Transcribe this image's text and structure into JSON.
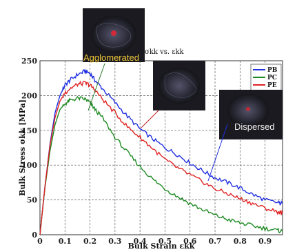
{
  "chart_data": {
    "type": "line",
    "title": "σkk vs. εkk",
    "xlabel": "Bulk Strain εkk",
    "ylabel": "Bulk Stress σkk [MPa]",
    "xlim": [
      0,
      0.97
    ],
    "ylim": [
      0,
      250
    ],
    "x_ticks": [
      "0",
      "0.1",
      "0.2",
      "0.3",
      "0.4",
      "0.5",
      "0.6",
      "0.7",
      "0.8",
      "0.9"
    ],
    "y_ticks": [
      "0",
      "50",
      "100",
      "150",
      "200",
      "250"
    ],
    "grid": true,
    "legend_position": "top-right",
    "series": [
      {
        "name": "PB",
        "color": "#1f2fe0",
        "x": [
          0,
          0.02,
          0.04,
          0.06,
          0.08,
          0.1,
          0.12,
          0.15,
          0.18,
          0.2,
          0.22,
          0.25,
          0.3,
          0.35,
          0.4,
          0.45,
          0.5,
          0.55,
          0.6,
          0.65,
          0.7,
          0.75,
          0.8,
          0.85,
          0.9,
          0.95,
          0.97
        ],
        "y": [
          0,
          70,
          130,
          175,
          200,
          215,
          222,
          230,
          235,
          232,
          222,
          210,
          190,
          170,
          152,
          138,
          125,
          115,
          103,
          92,
          82,
          75,
          67,
          58,
          50,
          46,
          45
        ]
      },
      {
        "name": "PC",
        "color": "#1e8a22",
        "x": [
          0,
          0.02,
          0.04,
          0.06,
          0.08,
          0.1,
          0.12,
          0.15,
          0.18,
          0.2,
          0.22,
          0.25,
          0.3,
          0.35,
          0.4,
          0.45,
          0.5,
          0.55,
          0.6,
          0.65,
          0.7,
          0.75,
          0.8,
          0.85,
          0.9,
          0.95,
          0.97
        ],
        "y": [
          0,
          68,
          120,
          158,
          180,
          188,
          193,
          196,
          195,
          190,
          180,
          168,
          140,
          118,
          98,
          80,
          66,
          55,
          45,
          36,
          28,
          22,
          17,
          13,
          9,
          6,
          5
        ]
      },
      {
        "name": "PE",
        "color": "#e02222",
        "x": [
          0,
          0.02,
          0.04,
          0.06,
          0.08,
          0.1,
          0.12,
          0.15,
          0.18,
          0.2,
          0.22,
          0.25,
          0.3,
          0.35,
          0.4,
          0.45,
          0.5,
          0.55,
          0.6,
          0.65,
          0.7,
          0.75,
          0.8,
          0.85,
          0.9,
          0.95,
          0.97
        ],
        "y": [
          0,
          70,
          128,
          168,
          192,
          204,
          210,
          216,
          218,
          215,
          208,
          195,
          175,
          155,
          140,
          124,
          108,
          96,
          86,
          76,
          66,
          59,
          52,
          45,
          38,
          33,
          31
        ]
      }
    ],
    "annotations": [
      {
        "text": "Agglomerated"
      },
      {
        "text": "Dispersed"
      }
    ]
  }
}
